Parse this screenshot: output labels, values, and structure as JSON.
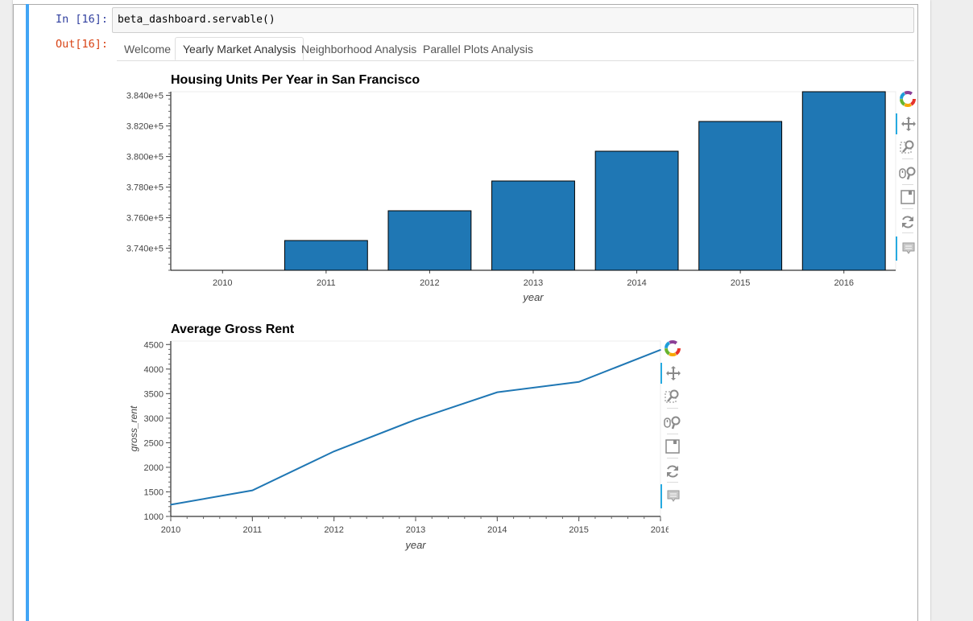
{
  "notebook": {
    "in_prompt": "In [16]:",
    "out_prompt": "Out[16]:",
    "code": "beta_dashboard.servable()"
  },
  "tabs": [
    {
      "label": "Welcome",
      "active": false
    },
    {
      "label": "Yearly Market Analysis",
      "active": true
    },
    {
      "label": "Neighborhood Analysis",
      "active": false
    },
    {
      "label": "Parallel Plots Analysis",
      "active": false
    }
  ],
  "colors": {
    "bar": "#1f77b4",
    "line": "#1f77b4",
    "cell_bar": "#42a5f5"
  },
  "toolbar_icons": [
    "bokeh-logo-icon",
    "pan-icon",
    "box-zoom-icon",
    "wheel-zoom-icon",
    "save-icon",
    "reset-icon",
    "hover-icon"
  ],
  "chart_data": [
    {
      "type": "bar",
      "title": "Housing Units Per Year in San Francisco",
      "xlabel": "year",
      "ylabel": "",
      "categories": [
        "2010",
        "2011",
        "2012",
        "2013",
        "2014",
        "2015",
        "2016"
      ],
      "values": [
        372560,
        374507,
        376454,
        378401,
        380348,
        382295,
        384242
      ],
      "ylim": [
        372560,
        384242
      ],
      "yticks": [
        374000,
        376000,
        378000,
        380000,
        382000,
        384000
      ],
      "ytick_labels": [
        "3.740e+5",
        "3.760e+5",
        "3.780e+5",
        "3.800e+5",
        "3.820e+5",
        "3.840e+5"
      ],
      "grid": false
    },
    {
      "type": "line",
      "title": "Average Gross Rent",
      "xlabel": "year",
      "ylabel": "gross_rent",
      "x": [
        2010,
        2011,
        2012,
        2013,
        2014,
        2015,
        2016
      ],
      "values": [
        1239,
        1530,
        2324,
        2971,
        3528,
        3739,
        4390
      ],
      "xlim": [
        2010,
        2016
      ],
      "ylim": [
        1000,
        4570
      ],
      "yticks": [
        1000,
        1500,
        2000,
        2500,
        3000,
        3500,
        4000,
        4500
      ],
      "ytick_labels": [
        "1000",
        "1500",
        "2000",
        "2500",
        "3000",
        "3500",
        "4000",
        "4500"
      ],
      "xticks": [
        2010,
        2011,
        2012,
        2013,
        2014,
        2015,
        2016
      ],
      "xtick_labels": [
        "2010",
        "2011",
        "2012",
        "2013",
        "2014",
        "2015",
        "2016"
      ],
      "grid": false
    }
  ]
}
